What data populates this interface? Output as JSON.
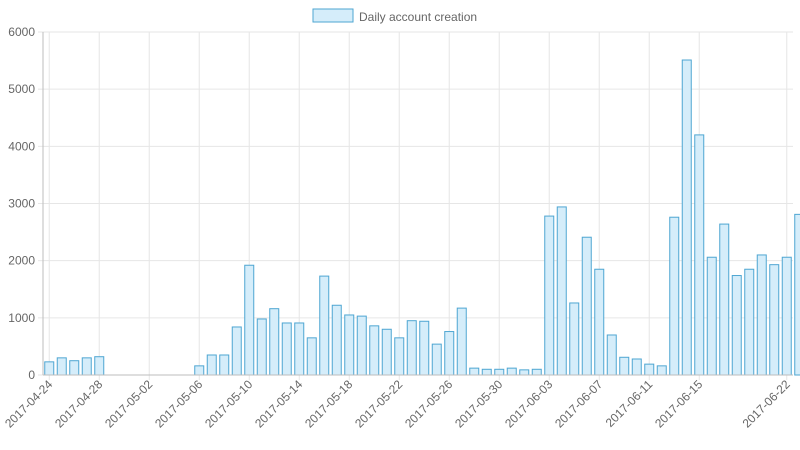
{
  "colors": {
    "bar_fill": "#d5edfa",
    "bar_stroke": "#4ea6d2",
    "grid": "#e6e6e6",
    "axis": "#bdbdbd",
    "text": "#666666"
  },
  "chart_data": {
    "type": "bar",
    "title": "",
    "xlabel": "",
    "ylabel": "",
    "legend_position": "top-center",
    "grid": true,
    "ylim": [
      0,
      6000
    ],
    "y_ticks": [
      0,
      1000,
      2000,
      3000,
      4000,
      5000,
      6000
    ],
    "x_tick_labels": [
      "2017-04-24",
      "2017-04-28",
      "2017-05-02",
      "2017-05-06",
      "2017-05-10",
      "2017-05-14",
      "2017-05-18",
      "2017-05-22",
      "2017-05-26",
      "2017-05-30",
      "2017-06-03",
      "2017-06-07",
      "2017-06-11",
      "2017-06-15",
      "2017-06-22"
    ],
    "categories": [
      "2017-04-24",
      "2017-04-25",
      "2017-04-26",
      "2017-04-27",
      "2017-04-28",
      "2017-04-29",
      "2017-04-30",
      "2017-05-01",
      "2017-05-02",
      "2017-05-03",
      "2017-05-04",
      "2017-05-05",
      "2017-05-06",
      "2017-05-07",
      "2017-05-08",
      "2017-05-09",
      "2017-05-10",
      "2017-05-11",
      "2017-05-12",
      "2017-05-13",
      "2017-05-14",
      "2017-05-15",
      "2017-05-16",
      "2017-05-17",
      "2017-05-18",
      "2017-05-19",
      "2017-05-20",
      "2017-05-21",
      "2017-05-22",
      "2017-05-23",
      "2017-05-24",
      "2017-05-25",
      "2017-05-26",
      "2017-05-27",
      "2017-05-28",
      "2017-05-29",
      "2017-05-30",
      "2017-05-31",
      "2017-06-01",
      "2017-06-02",
      "2017-06-03",
      "2017-06-04",
      "2017-06-05",
      "2017-06-06",
      "2017-06-07",
      "2017-06-08",
      "2017-06-09",
      "2017-06-10",
      "2017-06-11",
      "2017-06-12",
      "2017-06-13",
      "2017-06-14",
      "2017-06-15",
      "2017-06-16",
      "2017-06-17",
      "2017-06-18",
      "2017-06-19",
      "2017-06-20",
      "2017-06-21",
      "2017-06-22"
    ],
    "series": [
      {
        "name": "Daily account creation",
        "values": [
          230,
          300,
          250,
          300,
          320,
          0,
          0,
          0,
          0,
          0,
          0,
          0,
          160,
          350,
          350,
          840,
          1920,
          980,
          1160,
          910,
          910,
          650,
          1730,
          1220,
          1050,
          1030,
          860,
          800,
          650,
          950,
          940,
          540,
          760,
          1170,
          120,
          100,
          100,
          120,
          90,
          100,
          2780,
          2940,
          1260,
          2410,
          1850,
          700,
          310,
          280,
          190,
          160,
          2760,
          5510,
          4200,
          2060,
          2640,
          1740,
          1850,
          2100,
          1930,
          2060
        ]
      }
    ],
    "trailing_value": 2810
  }
}
